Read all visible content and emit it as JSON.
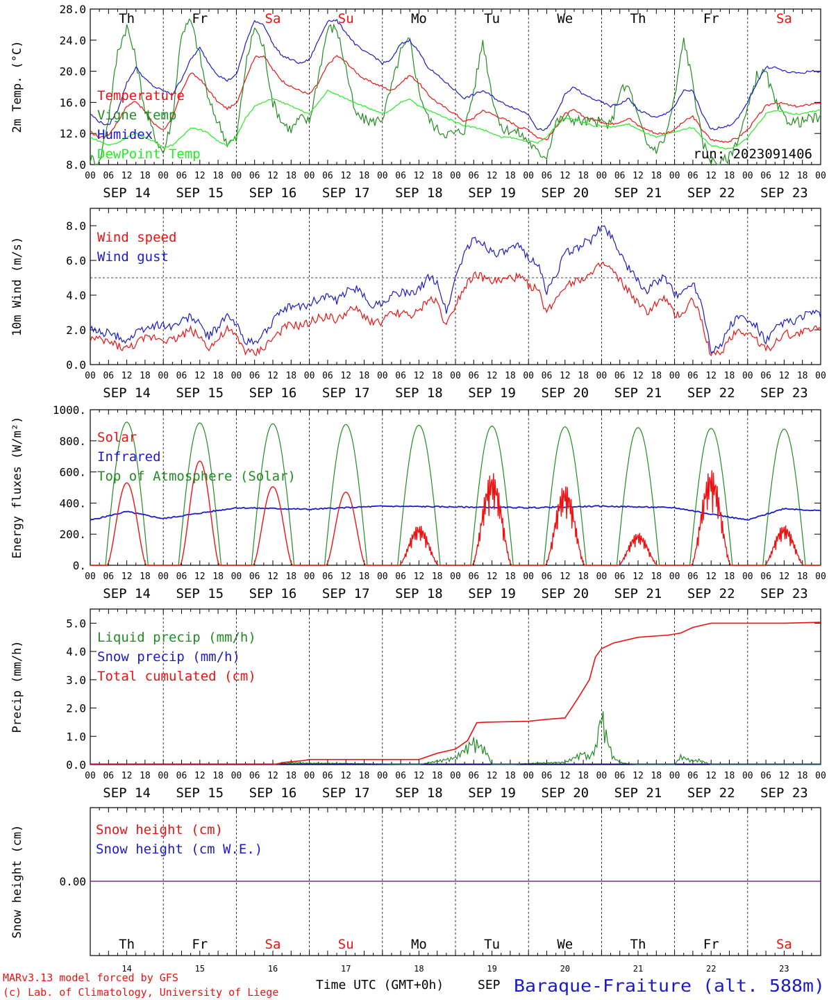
{
  "footer": {
    "model_line": "MARv3.13 model forced by GFS",
    "lab_line": "(c) Lab. of Climatology, University of Liege",
    "x_title": "Time UTC (GMT+0h)",
    "month": "SEP",
    "station": "Baraque-Fraiture (alt. 588m)"
  },
  "day_labels": [
    "Th",
    "Fr",
    "Sa",
    "Su",
    "Mo",
    "Tu",
    "We",
    "Th",
    "Fr",
    "Sa"
  ],
  "weekend_color": "#ee1111",
  "date_labels": [
    "SEP 14",
    "SEP 15",
    "SEP 16",
    "SEP 17",
    "SEP 18",
    "SEP 19",
    "SEP 20",
    "SEP 21",
    "SEP 22",
    "SEP 23"
  ],
  "day_numbers": [
    "14",
    "15",
    "16",
    "17",
    "18",
    "19",
    "20",
    "21",
    "22",
    "23"
  ],
  "hour_ticks": [
    "00",
    "06",
    "12",
    "18"
  ],
  "hour_end_tick": "00",
  "chart_data": [
    {
      "id": "temp",
      "type": "line",
      "ylabel": "2m Temp. (°C)",
      "ylim": [
        8,
        28
      ],
      "yticks": [
        "8.0",
        "12.0",
        "16.0",
        "20.0",
        "24.0",
        "28.0"
      ],
      "annotation": "run: 2023091406",
      "x_hours": [
        0,
        3,
        6,
        9,
        12,
        15,
        18,
        21,
        24,
        27,
        30,
        33,
        36,
        39,
        42,
        45,
        48,
        51,
        54,
        57,
        60,
        63,
        66,
        69,
        72,
        75,
        78,
        81,
        84,
        87,
        90,
        93,
        96,
        99,
        102,
        105,
        108,
        111,
        114,
        117,
        120,
        123,
        126,
        129,
        132,
        135,
        138,
        141,
        144,
        147,
        150,
        153,
        156,
        159,
        162,
        165,
        168,
        171,
        174,
        177,
        180,
        183,
        186,
        189,
        192,
        195,
        198,
        201,
        204,
        207,
        210,
        213,
        216,
        219,
        222,
        225,
        228,
        231,
        234,
        237,
        240
      ],
      "series": [
        {
          "name": "Temperature",
          "color": "#ee1111",
          "values": [
            12.2,
            11.5,
            11.8,
            13.5,
            15.5,
            16.2,
            14.8,
            13.2,
            12.5,
            13.8,
            17.5,
            19.8,
            19.0,
            17.5,
            16.0,
            15.2,
            15.8,
            19.0,
            21.8,
            22.0,
            20.2,
            18.8,
            18.0,
            17.5,
            17.0,
            18.5,
            20.8,
            22.0,
            21.2,
            20.0,
            19.0,
            18.5,
            18.0,
            17.5,
            18.5,
            19.5,
            18.5,
            17.0,
            16.0,
            15.2,
            14.5,
            13.5,
            14.0,
            15.0,
            14.5,
            14.0,
            13.5,
            12.8,
            12.5,
            11.5,
            11.2,
            12.8,
            14.5,
            15.0,
            14.2,
            13.8,
            13.5,
            13.2,
            13.5,
            14.0,
            13.0,
            12.5,
            12.0,
            12.0,
            12.5,
            13.5,
            14.2,
            12.5,
            11.2,
            11.0,
            11.0,
            11.5,
            12.5,
            14.0,
            15.5,
            16.0,
            15.8,
            15.5,
            15.5,
            15.8,
            16.0
          ]
        },
        {
          "name": "Vigne temp",
          "color": "#228b22",
          "values": [
            8.8,
            8.2,
            14.0,
            22.5,
            25.8,
            21.5,
            15.0,
            11.8,
            9.5,
            14.0,
            25.0,
            26.5,
            22.0,
            16.0,
            13.5,
            10.8,
            11.2,
            20.5,
            25.8,
            23.0,
            16.0,
            13.5,
            12.5,
            14.0,
            13.5,
            19.5,
            25.5,
            25.5,
            20.5,
            14.5,
            13.8,
            13.5,
            14.0,
            18.0,
            22.5,
            24.0,
            17.5,
            14.0,
            12.5,
            12.0,
            12.0,
            12.5,
            17.5,
            24.0,
            17.0,
            12.5,
            12.5,
            12.0,
            11.0,
            9.5,
            9.2,
            13.5,
            14.0,
            13.8,
            13.5,
            13.5,
            13.5,
            13.0,
            17.5,
            18.0,
            14.0,
            10.5,
            10.0,
            11.5,
            16.5,
            24.2,
            18.5,
            11.0,
            8.5,
            8.2,
            9.0,
            11.5,
            15.0,
            19.5,
            19.8,
            16.0,
            14.0,
            13.5,
            13.5,
            14.0,
            13.8
          ]
        },
        {
          "name": "Humidex",
          "color": "#1a1acc",
          "values": [
            14.5,
            13.5,
            13.0,
            15.0,
            18.5,
            20.5,
            19.0,
            18.0,
            17.5,
            17.0,
            19.0,
            21.5,
            23.0,
            21.0,
            19.5,
            18.8,
            19.5,
            23.5,
            26.5,
            26.0,
            23.5,
            22.0,
            21.5,
            21.0,
            21.5,
            24.0,
            26.5,
            26.5,
            25.0,
            23.5,
            22.5,
            22.0,
            21.0,
            21.5,
            23.5,
            24.0,
            22.5,
            20.5,
            19.5,
            18.5,
            17.5,
            16.5,
            17.0,
            17.5,
            16.8,
            16.0,
            15.5,
            15.0,
            14.5,
            12.5,
            12.5,
            14.5,
            17.0,
            18.0,
            17.0,
            16.5,
            16.0,
            15.5,
            15.8,
            16.5,
            15.0,
            14.5,
            14.0,
            14.5,
            15.5,
            17.5,
            17.5,
            14.5,
            12.5,
            12.8,
            13.0,
            14.0,
            16.0,
            18.5,
            20.5,
            20.5,
            20.0,
            19.8,
            19.8,
            20.0,
            20.0
          ]
        },
        {
          "name": "DewPoint Temp",
          "color": "#22ee22",
          "values": [
            11.5,
            11.0,
            10.5,
            10.8,
            11.5,
            12.0,
            11.5,
            11.0,
            10.2,
            10.5,
            11.5,
            12.8,
            12.5,
            12.0,
            11.0,
            10.5,
            11.5,
            14.0,
            15.5,
            16.0,
            16.5,
            16.0,
            15.5,
            15.0,
            14.5,
            16.0,
            17.5,
            17.0,
            16.5,
            16.0,
            15.5,
            15.0,
            14.5,
            15.0,
            16.0,
            16.5,
            15.5,
            15.0,
            14.5,
            14.0,
            13.5,
            13.0,
            12.8,
            12.5,
            12.0,
            11.5,
            11.5,
            11.2,
            11.0,
            10.8,
            11.5,
            13.0,
            14.0,
            13.8,
            13.5,
            13.0,
            13.0,
            12.8,
            13.0,
            13.2,
            12.5,
            12.0,
            11.5,
            11.8,
            12.2,
            12.5,
            12.8,
            11.5,
            10.5,
            10.2,
            10.0,
            10.5,
            11.5,
            13.0,
            14.5,
            15.0,
            14.8,
            14.5,
            14.5,
            14.8,
            15.0
          ]
        }
      ]
    },
    {
      "id": "wind",
      "type": "line",
      "ylabel": "10m Wind (m/s)",
      "ylim": [
        0,
        9
      ],
      "yticks": [
        "0.0",
        "2.0",
        "4.0",
        "6.0",
        "8.0"
      ],
      "ytick_values": [
        0,
        2,
        4,
        6,
        8
      ],
      "reference_line": 5,
      "x_hours": [
        0,
        3,
        6,
        9,
        12,
        15,
        18,
        21,
        24,
        27,
        30,
        33,
        36,
        39,
        42,
        45,
        48,
        51,
        54,
        57,
        60,
        63,
        66,
        69,
        72,
        75,
        78,
        81,
        84,
        87,
        90,
        93,
        96,
        99,
        102,
        105,
        108,
        111,
        114,
        117,
        120,
        123,
        126,
        129,
        132,
        135,
        138,
        141,
        144,
        147,
        150,
        153,
        156,
        159,
        162,
        165,
        168,
        171,
        174,
        177,
        180,
        183,
        186,
        189,
        192,
        195,
        198,
        201,
        204,
        207,
        210,
        213,
        216,
        219,
        222,
        225,
        228,
        231,
        234,
        237,
        240
      ],
      "series": [
        {
          "name": "Wind speed",
          "color": "#ee1111",
          "values": [
            1.5,
            1.4,
            1.3,
            1.1,
            0.9,
            1.2,
            1.5,
            1.6,
            1.5,
            1.4,
            1.7,
            2.0,
            1.6,
            1.0,
            1.4,
            2.0,
            1.6,
            0.8,
            0.6,
            1.0,
            1.5,
            2.0,
            2.3,
            2.2,
            2.4,
            2.7,
            2.8,
            2.5,
            3.0,
            3.2,
            2.8,
            2.4,
            2.5,
            2.9,
            3.0,
            2.8,
            3.0,
            3.8,
            3.6,
            2.2,
            3.5,
            4.5,
            5.2,
            5.0,
            4.8,
            4.8,
            5.0,
            5.0,
            4.6,
            4.3,
            3.0,
            3.8,
            4.6,
            4.8,
            5.0,
            5.2,
            5.8,
            5.5,
            4.8,
            4.2,
            3.5,
            3.0,
            3.5,
            3.8,
            2.8,
            3.0,
            3.8,
            2.5,
            0.5,
            0.6,
            1.5,
            2.0,
            1.8,
            1.5,
            0.8,
            1.3,
            1.8,
            1.7,
            1.9,
            2.0,
            2.2
          ]
        },
        {
          "name": "Wind gust",
          "color": "#1a1acc",
          "values": [
            2.0,
            1.9,
            1.8,
            1.6,
            1.4,
            1.8,
            2.1,
            2.2,
            2.3,
            2.2,
            2.5,
            2.8,
            2.3,
            1.6,
            2.2,
            2.8,
            2.3,
            1.4,
            1.2,
            1.8,
            2.5,
            3.0,
            3.4,
            3.3,
            3.5,
            3.8,
            4.0,
            3.6,
            4.2,
            4.4,
            3.9,
            3.4,
            3.6,
            4.0,
            4.2,
            4.0,
            4.3,
            5.0,
            4.8,
            3.0,
            5.0,
            6.5,
            7.2,
            7.0,
            6.5,
            6.4,
            6.6,
            6.8,
            6.2,
            5.8,
            4.2,
            5.2,
            6.4,
            6.6,
            7.0,
            7.2,
            8.0,
            7.5,
            6.5,
            5.5,
            4.8,
            4.2,
            4.8,
            5.0,
            4.0,
            4.2,
            4.8,
            3.5,
            0.9,
            1.0,
            2.2,
            2.8,
            2.5,
            2.2,
            1.3,
            2.0,
            2.5,
            2.4,
            2.8,
            3.0,
            2.8
          ]
        }
      ]
    },
    {
      "id": "energy",
      "type": "line",
      "ylabel": "Energy fluxes (W/m²)",
      "ylim": [
        0,
        1000
      ],
      "yticks": [
        "0.",
        "200.",
        "400.",
        "600.",
        "800.",
        "1000."
      ],
      "daily_peaks": {
        "toa_solar": [
          920,
          915,
          910,
          905,
          900,
          895,
          890,
          885,
          880,
          875
        ],
        "solar": [
          530,
          670,
          505,
          470,
          260,
          600,
          520,
          210,
          620,
          260
        ]
      },
      "series": [
        {
          "name": "Solar",
          "color": "#ee1111"
        },
        {
          "name": "Infrared",
          "color": "#1a1acc",
          "x_hours": [
            0,
            12,
            24,
            48,
            72,
            96,
            120,
            144,
            168,
            192,
            216,
            228,
            240
          ],
          "values": [
            290,
            345,
            300,
            370,
            360,
            380,
            375,
            370,
            380,
            370,
            290,
            365,
            350
          ]
        },
        {
          "name": "Top of Atmosphere (Solar)",
          "color": "#228b22"
        }
      ]
    },
    {
      "id": "precip",
      "type": "line",
      "ylabel": "Precip (mm/h)",
      "ylim": [
        0,
        5.5
      ],
      "yticks": [
        "0.0",
        "1.0",
        "2.0",
        "3.0",
        "4.0",
        "5.0"
      ],
      "ytick_values": [
        0,
        1,
        2,
        3,
        4,
        5
      ],
      "series": [
        {
          "name": "Liquid precip (mm/h)",
          "color": "#228b22",
          "x_hours": [
            0,
            60,
            66,
            72,
            84,
            108,
            114,
            120,
            126,
            130,
            132,
            138,
            144,
            156,
            162,
            164,
            166,
            168,
            170,
            172,
            174,
            176,
            180,
            192,
            194,
            198,
            200,
            204,
            240
          ],
          "values": [
            0,
            0,
            0.08,
            0.06,
            0.05,
            0,
            0.15,
            0.3,
            1.0,
            0.6,
            0,
            0,
            0.05,
            0.1,
            0.5,
            0.3,
            0.7,
            2.2,
            1.0,
            0.3,
            0.1,
            0.05,
            0,
            0,
            0.35,
            0.15,
            0.2,
            0,
            0
          ]
        },
        {
          "name": "Snow precip (mm/h)",
          "color": "#1a1acc"
        },
        {
          "name": "Total cumulated (cm)",
          "color": "#ee1111",
          "x_hours": [
            0,
            60,
            64,
            70,
            72,
            96,
            108,
            114,
            120,
            124,
            127,
            130,
            144,
            150,
            156,
            160,
            164,
            166,
            168,
            172,
            180,
            190,
            194,
            198,
            204,
            216,
            228,
            240
          ],
          "values": [
            0,
            0,
            0.08,
            0.14,
            0.18,
            0.18,
            0.18,
            0.4,
            0.55,
            0.85,
            1.48,
            1.5,
            1.53,
            1.6,
            1.65,
            2.3,
            3.0,
            3.8,
            4.1,
            4.3,
            4.5,
            4.58,
            4.65,
            4.85,
            5.0,
            5.0,
            5.0,
            5.03
          ]
        }
      ]
    },
    {
      "id": "snow",
      "type": "line",
      "ylabel": "Snow height (cm)",
      "yticks": [
        "0.00"
      ],
      "series": [
        {
          "name": "Snow height (cm)",
          "color": "#ee1111",
          "x_hours": [
            0,
            240
          ],
          "values": [
            0,
            0
          ]
        },
        {
          "name": "Snow height (cm W.E.)",
          "color": "#1a1acc",
          "x_hours": [
            0,
            240
          ],
          "values": [
            0,
            0
          ]
        }
      ]
    }
  ]
}
